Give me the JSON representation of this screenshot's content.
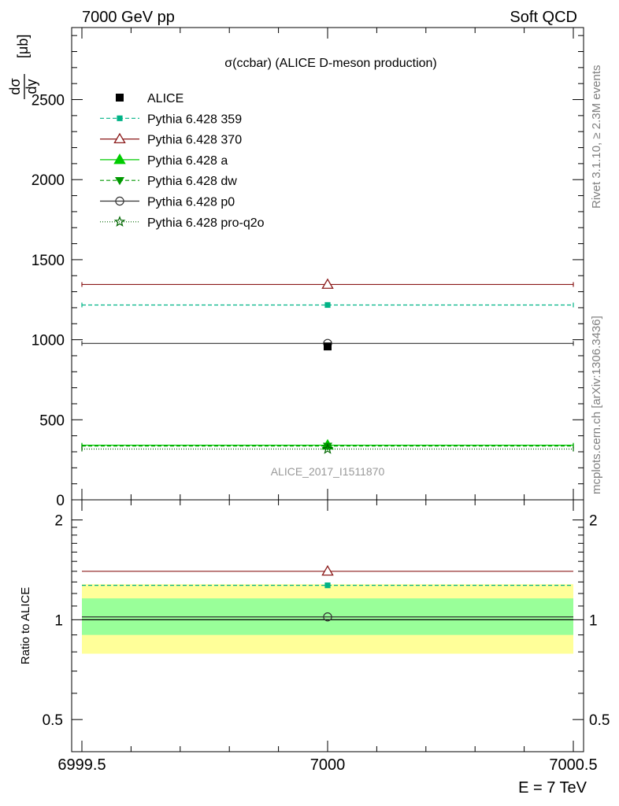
{
  "header": {
    "left": "7000 GeV pp",
    "right": "Soft QCD"
  },
  "side_labels": {
    "rivet": "Rivet 3.1.10, ≥ 2.3M events",
    "mcplots": "mcplots.cern.ch [arXiv:1306.3436]"
  },
  "watermark": "ALICE_2017_I1511870",
  "xaxis_title": "E = 7 TeV",
  "chart_data": [
    {
      "type": "line",
      "title": "σ(ccbar) (ALICE D-meson production)",
      "ylabel": {
        "numerator": "dσ",
        "denominator": "dy",
        "unit": "[μb]"
      },
      "xlim": [
        6999.5,
        7000.5
      ],
      "ylim": [
        0,
        2950
      ],
      "yticks": [
        0,
        500,
        1000,
        1500,
        2000,
        2500
      ],
      "ytick_labels": [
        "0",
        "500",
        "1000",
        "1500",
        "2000",
        "2500"
      ],
      "xticks": [
        6999.5,
        7000,
        7000.5
      ],
      "xtick_labels": [
        "6999.5",
        "7000",
        "7000.5"
      ],
      "legend_placement": "top-left",
      "data": {
        "name": "ALICE",
        "x": 7000,
        "y": 958,
        "color": "#000000",
        "marker": "square"
      },
      "series": [
        {
          "name": "Pythia 6.428 359",
          "x": [
            6999.5,
            7000.5
          ],
          "y": [
            1217,
            1217
          ],
          "marker_x": 7000,
          "marker_y": 1217,
          "color": "#00b386",
          "dash": "5,3",
          "marker": "square-small"
        },
        {
          "name": "Pythia 6.428 370",
          "x": [
            6999.5,
            7000.5
          ],
          "y": [
            1345,
            1345
          ],
          "marker_x": 7000,
          "marker_y": 1345,
          "color": "#8b1a1a",
          "dash": "",
          "marker": "triangle-open"
        },
        {
          "name": "Pythia 6.428 a",
          "x": [
            6999.5,
            7000.5
          ],
          "y": [
            341,
            341
          ],
          "marker_x": 7000,
          "marker_y": 341,
          "color": "#00cc00",
          "dash": "",
          "marker": "triangle"
        },
        {
          "name": "Pythia 6.428 dw",
          "x": [
            6999.5,
            7000.5
          ],
          "y": [
            336,
            336
          ],
          "marker_x": 7000,
          "marker_y": 336,
          "color": "#009900",
          "dash": "5,3",
          "marker": "triangle-down"
        },
        {
          "name": "Pythia 6.428 p0",
          "x": [
            6999.5,
            7000.5
          ],
          "y": [
            977,
            977
          ],
          "marker_x": 7000,
          "marker_y": 977,
          "color": "#333333",
          "dash": "",
          "marker": "circle-open"
        },
        {
          "name": "Pythia 6.428 pro-q2o",
          "x": [
            6999.5,
            7000.5
          ],
          "y": [
            317,
            317
          ],
          "marker_x": 7000,
          "marker_y": 317,
          "color": "#006600",
          "dash": "1,2",
          "marker": "star-open"
        }
      ]
    },
    {
      "type": "line",
      "ylabel": "Ratio to ALICE",
      "yscale": "log",
      "xlim": [
        6999.5,
        7000.5
      ],
      "ylim": [
        0.4,
        2.3
      ],
      "yticks": [
        0.5,
        1,
        2
      ],
      "ytick_labels": [
        "0.5",
        "1",
        "2"
      ],
      "xticks": [
        6999.5,
        7000,
        7000.5
      ],
      "bands": [
        {
          "low": 0.79,
          "high": 1.28,
          "color": "#ffff99"
        },
        {
          "low": 0.9,
          "high": 1.16,
          "color": "#99ff99"
        }
      ],
      "reference": 1.0,
      "series": [
        {
          "name": "Pythia 6.428 359",
          "y": 1.27,
          "color": "#00b386",
          "dash": "5,3",
          "marker": "square-small"
        },
        {
          "name": "Pythia 6.428 370",
          "y": 1.4,
          "color": "#8b1a1a",
          "dash": "",
          "marker": "triangle-open"
        },
        {
          "name": "Pythia 6.428 p0",
          "y": 1.02,
          "color": "#333333",
          "dash": "",
          "marker": "circle-open"
        }
      ]
    }
  ]
}
